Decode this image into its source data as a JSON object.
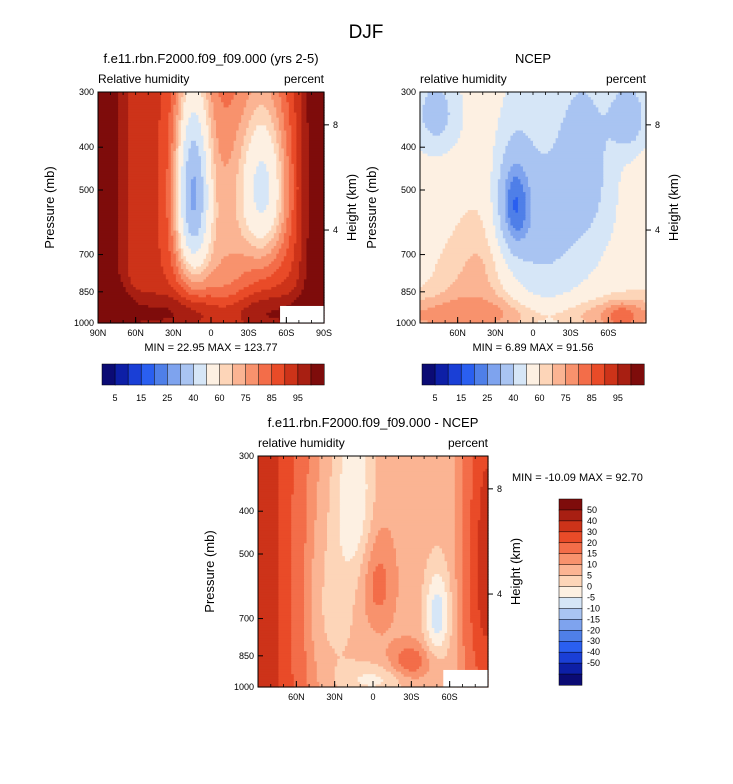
{
  "figure": {
    "title": "DJF"
  },
  "colors": {
    "abs": [
      "#0b0b74",
      "#0d1fa6",
      "#1a3fd6",
      "#2a5ff0",
      "#4f7fe8",
      "#7ea3ee",
      "#a9c4f2",
      "#d6e6f7",
      "#fdf0e2",
      "#fdd5b8",
      "#fbb493",
      "#f8926d",
      "#f36d49",
      "#e94b28",
      "#cd3319",
      "#a81f12",
      "#7e0c0b"
    ],
    "diff": [
      "#0b0b74",
      "#0d1fa6",
      "#1a3fd6",
      "#2a5ff0",
      "#4f7fe8",
      "#7ea3ee",
      "#a9c4f2",
      "#d6e6f7",
      "#fdf0e2",
      "#fdd5b8",
      "#fbb493",
      "#f8926d",
      "#f36d49",
      "#e94b28",
      "#cd3319",
      "#a81f12",
      "#7e0c0b"
    ]
  },
  "abs_colorbar": {
    "labels": [
      "5",
      "15",
      "25",
      "40",
      "60",
      "75",
      "85",
      "95"
    ]
  },
  "diff_colorbar": {
    "labels": [
      "50",
      "40",
      "30",
      "20",
      "15",
      "10",
      "5",
      "0",
      "-5",
      "-10",
      "-15",
      "-20",
      "-30",
      "-40",
      "-50"
    ]
  },
  "chart_data": [
    {
      "type": "heatmap",
      "title": "f.e11.rbn.F2000.f09_f09.000 (yrs 2-5)",
      "left_label": "Relative humidity",
      "right_label": "percent",
      "ylabel": "Pressure (mb)",
      "ylabel_right": "Height (km)",
      "y_ticks": [
        "300",
        "400",
        "500",
        "700",
        "850",
        "1000"
      ],
      "y_tick_values": [
        300,
        400,
        500,
        700,
        850,
        1000
      ],
      "x_ticks": [
        "90N",
        "60N",
        "30N",
        "0",
        "30S",
        "60S",
        "90S"
      ],
      "x_tick_values": [
        90,
        60,
        30,
        0,
        -30,
        -60,
        -90
      ],
      "height_ticks": [
        "8",
        "4"
      ],
      "height_tick_pressures": [
        356,
        616
      ],
      "xlim": [
        90,
        -90
      ],
      "ylim": [
        300,
        1000
      ],
      "stats_text": "MIN =  22.95  MAX = 123.77",
      "min": 22.95,
      "max": 123.77,
      "levels": [
        5,
        10,
        15,
        20,
        25,
        30,
        40,
        50,
        60,
        65,
        70,
        75,
        80,
        85,
        90,
        95
      ],
      "missing_box": {
        "lat": [
          -55,
          -90
        ],
        "p": [
          915,
          1000
        ]
      }
    },
    {
      "type": "heatmap",
      "title": "NCEP",
      "left_label": "relative humidity",
      "right_label": "percent",
      "ylabel": "Pressure (mb)",
      "ylabel_right": "Height (km)",
      "y_ticks": [
        "300",
        "400",
        "500",
        "700",
        "850",
        "1000"
      ],
      "y_tick_values": [
        300,
        400,
        500,
        700,
        850,
        1000
      ],
      "x_ticks": [
        "60N",
        "30N",
        "0",
        "30S",
        "60S"
      ],
      "x_tick_values": [
        60,
        30,
        0,
        -30,
        -60
      ],
      "height_ticks": [
        "8",
        "4"
      ],
      "height_tick_pressures": [
        356,
        616
      ],
      "xlim": [
        90,
        -90
      ],
      "ylim": [
        300,
        1000
      ],
      "stats_text": "MIN =   6.89  MAX =  91.56",
      "min": 6.89,
      "max": 91.56,
      "levels": [
        5,
        10,
        15,
        20,
        25,
        30,
        40,
        50,
        60,
        65,
        70,
        75,
        80,
        85,
        90,
        95
      ]
    },
    {
      "type": "heatmap",
      "title": "f.e11.rbn.F2000.f09_f09.000 - NCEP",
      "left_label": "relative humidity",
      "right_label": "percent",
      "ylabel": "Pressure (mb)",
      "ylabel_right": "Height (km)",
      "y_ticks": [
        "300",
        "400",
        "500",
        "700",
        "850",
        "1000"
      ],
      "y_tick_values": [
        300,
        400,
        500,
        700,
        850,
        1000
      ],
      "x_ticks": [
        "60N",
        "30N",
        "0",
        "30S",
        "60S"
      ],
      "x_tick_values": [
        60,
        30,
        0,
        -30,
        -60
      ],
      "height_ticks": [
        "8",
        "4"
      ],
      "height_tick_pressures": [
        356,
        616
      ],
      "xlim": [
        90,
        -90
      ],
      "ylim": [
        300,
        1000
      ],
      "stats_text": "MIN = -10.09  MAX =  92.70",
      "min": -10.09,
      "max": 92.7,
      "levels": [
        -50,
        -40,
        -30,
        -20,
        -15,
        -10,
        -5,
        0,
        5,
        10,
        15,
        20,
        30,
        40,
        50
      ],
      "missing_box": {
        "lat": [
          -55,
          -90
        ],
        "p": [
          915,
          1000
        ]
      }
    }
  ]
}
